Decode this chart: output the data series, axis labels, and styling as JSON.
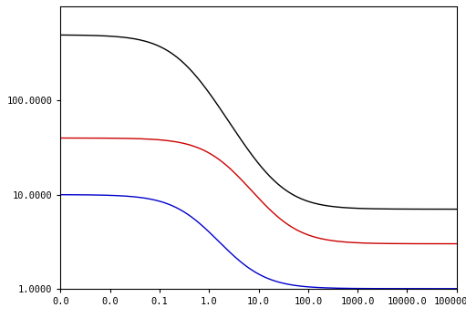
{
  "curves": [
    {
      "color": "#000000",
      "eta0": 500.0,
      "eta_inf": 7.0,
      "tau_star": 0.3,
      "n": 1.0,
      "label": "black"
    },
    {
      "color": "#cc0000",
      "eta0": 40.0,
      "eta_inf": 3.0,
      "tau_star": 2.0,
      "n": 1.0,
      "label": "red"
    },
    {
      "color": "#0000cc",
      "eta0": 10.0,
      "eta_inf": 1.0,
      "tau_star": 0.5,
      "n": 1.0,
      "label": "blue"
    }
  ],
  "xlim_log": [
    -3,
    5
  ],
  "ylim": [
    1.0,
    1000.0
  ],
  "ymin_display": 1.0,
  "ymax_display": 100.0,
  "yticks": [
    1.0,
    10.0,
    100.0
  ],
  "ytick_labels": [
    "1.0000",
    "10.0000",
    "100.0000"
  ],
  "xticks": [
    0.001,
    0.01,
    0.1,
    1.0,
    10.0,
    100.0,
    1000.0,
    10000.0,
    100000.0
  ],
  "xtick_labels": [
    "0.0",
    "0.0",
    "0.1",
    "1.0",
    "10.0",
    "100.0",
    "1000.0",
    "10000.0",
    "100000.0"
  ],
  "background_color": "#ffffff",
  "line_width": 1.0,
  "num_points": 300
}
